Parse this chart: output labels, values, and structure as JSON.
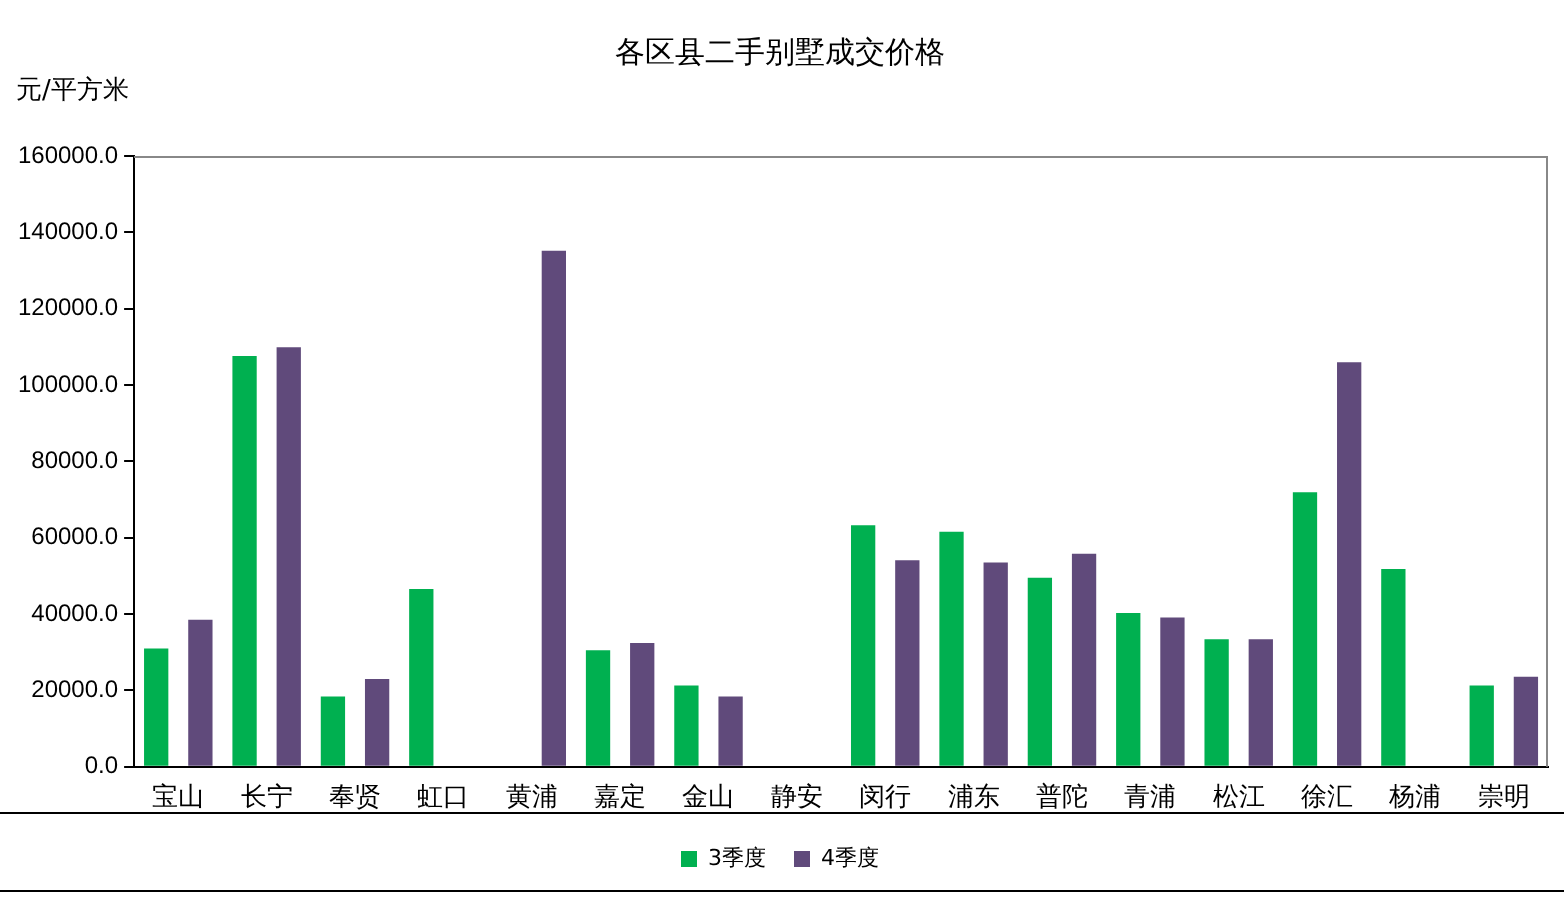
{
  "chart_data": {
    "type": "bar",
    "title": "各区县二手别墅成交价格",
    "ylabel": "元/平方米",
    "categories": [
      "宝山",
      "长宁",
      "奉贤",
      "虹口",
      "黄浦",
      "嘉定",
      "金山",
      "静安",
      "闵行",
      "浦东",
      "普陀",
      "青浦",
      "松江",
      "徐汇",
      "杨浦",
      "崇明"
    ],
    "series": [
      {
        "name": "3季度",
        "color": "#00b050",
        "values": [
          31000,
          107600,
          18400,
          46600,
          null,
          30500,
          21300,
          null,
          63300,
          61600,
          49500,
          40300,
          33400,
          71900,
          51800,
          21300
        ]
      },
      {
        "name": "4季度",
        "color": "#604a7b",
        "values": [
          38500,
          109900,
          23000,
          null,
          135200,
          32400,
          18400,
          null,
          54100,
          53500,
          55800,
          39100,
          33400,
          106000,
          null,
          23600
        ]
      }
    ],
    "ylim": [
      0,
      160000
    ],
    "yticks": [
      {
        "value": 0,
        "label": "0.0"
      },
      {
        "value": 20000,
        "label": "20000.0"
      },
      {
        "value": 40000,
        "label": "40000.0"
      },
      {
        "value": 60000,
        "label": "60000.0"
      },
      {
        "value": 80000,
        "label": "80000.0"
      },
      {
        "value": 100000,
        "label": "100000.0"
      },
      {
        "value": 120000,
        "label": "120000.0"
      },
      {
        "value": 140000,
        "label": "140000.0"
      },
      {
        "value": 160000,
        "label": "160000.0"
      }
    ],
    "grid": false,
    "legend": "bottom"
  }
}
